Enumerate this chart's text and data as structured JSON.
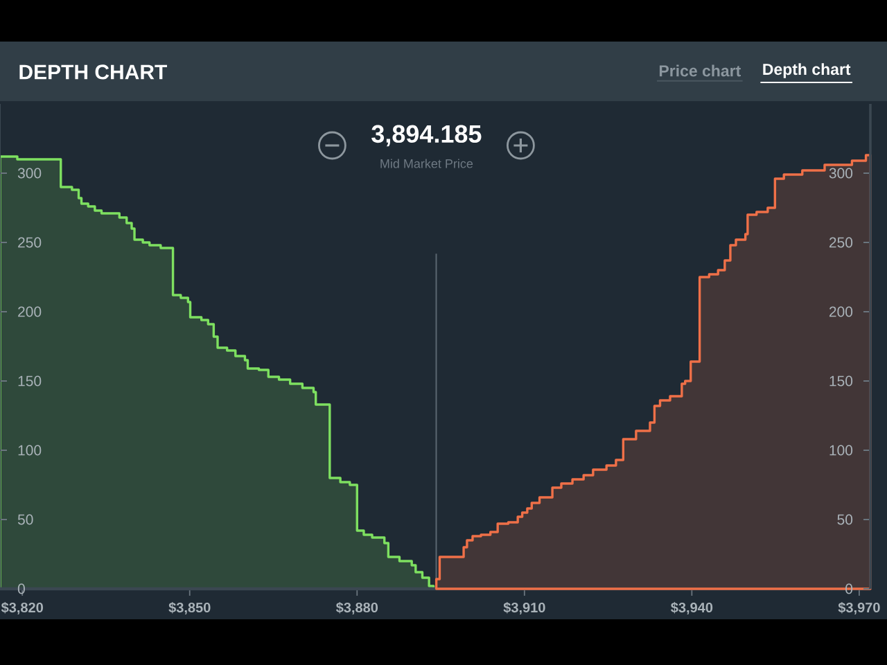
{
  "chart_data": {
    "type": "area",
    "title": "DEPTH CHART",
    "annotations": [
      "Price chart",
      "Depth chart",
      "3,894.185",
      "Mid Market Price"
    ],
    "xlim": [
      3816,
      3972
    ],
    "xticks": [
      {
        "value": 3820,
        "label": "$3,820"
      },
      {
        "value": 3850,
        "label": "$3,850"
      },
      {
        "value": 3880,
        "label": "$3,880"
      },
      {
        "value": 3910,
        "label": "$3,910"
      },
      {
        "value": 3940,
        "label": "$3,940"
      },
      {
        "value": 3970,
        "label": "$3,970"
      }
    ],
    "ylim": [
      0,
      350
    ],
    "yticks": [
      0,
      50,
      100,
      150,
      200,
      250,
      300
    ],
    "y2lim": [
      0,
      350
    ],
    "y2ticks": [
      0,
      50,
      100,
      150,
      200,
      250,
      300
    ],
    "ref_lines": [
      {
        "axis": "x",
        "value": 3894.185,
        "color": "#5b6670"
      }
    ],
    "series": [
      {
        "color": "#7ee060",
        "x": [
          3816,
          3819.1,
          3819.1,
          3826.9,
          3826.9,
          3828.9,
          3828.9,
          3830.1,
          3830.1,
          3830.6,
          3830.6,
          3831.8,
          3831.8,
          3833.0,
          3833.0,
          3834.2,
          3834.2,
          3837.4,
          3837.4,
          3838.7,
          3838.7,
          3839.6,
          3839.6,
          3840.1,
          3840.1,
          3841.6,
          3841.6,
          3842.8,
          3842.8,
          3844.8,
          3844.8,
          3847.0,
          3847.0,
          3848.4,
          3848.4,
          3849.7,
          3849.7,
          3850.1,
          3850.1,
          3852.1,
          3852.1,
          3853.3,
          3853.3,
          3854.3,
          3854.3,
          3855.0,
          3855.0,
          3856.7,
          3856.7,
          3858.2,
          3858.2,
          3859.9,
          3859.9,
          3860.4,
          3860.4,
          3862.4,
          3862.4,
          3864.1,
          3864.1,
          3866.0,
          3866.0,
          3868.0,
          3868.0,
          3870.2,
          3870.2,
          3872.2,
          3872.2,
          3872.6,
          3872.6,
          3875.1,
          3875.1,
          3877.0,
          3877.0,
          3878.7,
          3878.7,
          3880.0,
          3880.0,
          3881.2,
          3881.2,
          3882.7,
          3882.7,
          3884.9,
          3884.9,
          3885.6,
          3885.6,
          3887.6,
          3887.6,
          3889.8,
          3889.8,
          3890.5,
          3890.5,
          3891.7,
          3891.7,
          3892.9,
          3892.9,
          3893.7,
          3893.7,
          3894.2
        ],
        "values": [
          312,
          312,
          310,
          310,
          290,
          290,
          288,
          288,
          282,
          282,
          278,
          278,
          276,
          276,
          273,
          273,
          271,
          271,
          268,
          268,
          264,
          264,
          260,
          260,
          252,
          252,
          250,
          250,
          248,
          248,
          246,
          246,
          212,
          212,
          210,
          210,
          207,
          207,
          196,
          196,
          194,
          194,
          191,
          191,
          182,
          182,
          174,
          174,
          172,
          172,
          168,
          168,
          165,
          165,
          159,
          159,
          158,
          158,
          153,
          153,
          151,
          151,
          148,
          148,
          145,
          145,
          142,
          142,
          133,
          133,
          80,
          80,
          77,
          77,
          75,
          75,
          42,
          42,
          39,
          39,
          37,
          37,
          33,
          33,
          23,
          23,
          20,
          20,
          17,
          17,
          12,
          12,
          8,
          8,
          2,
          2,
          0,
          0
        ]
      },
      {
        "color": "#ef7048",
        "axis": "y2",
        "x": [
          3894.2,
          3894.2,
          3894.8,
          3894.8,
          3899.1,
          3899.1,
          3899.7,
          3899.7,
          3900.7,
          3900.7,
          3902.2,
          3902.2,
          3903.9,
          3903.9,
          3905.2,
          3905.2,
          3907.1,
          3907.1,
          3908.8,
          3908.8,
          3909.6,
          3909.6,
          3910.5,
          3910.5,
          3911.3,
          3911.3,
          3912.7,
          3912.7,
          3915.0,
          3915.0,
          3916.6,
          3916.6,
          3918.6,
          3918.6,
          3920.6,
          3920.6,
          3922.3,
          3922.3,
          3924.7,
          3924.7,
          3926.4,
          3926.4,
          3927.7,
          3927.7,
          3930.0,
          3930.0,
          3932.5,
          3932.5,
          3933.3,
          3933.3,
          3934.3,
          3934.3,
          3936.1,
          3936.1,
          3938.2,
          3938.2,
          3938.8,
          3938.8,
          3939.8,
          3939.8,
          3941.4,
          3941.4,
          3943.1,
          3943.1,
          3944.7,
          3944.7,
          3945.9,
          3945.9,
          3946.9,
          3946.9,
          3947.9,
          3947.9,
          3949.6,
          3949.6,
          3950.0,
          3950.0,
          3951.6,
          3951.6,
          3953.6,
          3953.6,
          3954.9,
          3954.9,
          3956.5,
          3956.5,
          3959.8,
          3959.8,
          3963.8,
          3963.8,
          3968.7,
          3968.7,
          3971.2,
          3971.2,
          3972
        ],
        "values": [
          0,
          7,
          7,
          23,
          23,
          30,
          30,
          35,
          35,
          38,
          38,
          39,
          39,
          41,
          41,
          47,
          47,
          48,
          48,
          52,
          52,
          55,
          55,
          58,
          58,
          62,
          62,
          66,
          66,
          73,
          73,
          76,
          76,
          79,
          79,
          82,
          82,
          86,
          86,
          89,
          89,
          93,
          93,
          108,
          108,
          114,
          114,
          120,
          120,
          132,
          132,
          136,
          136,
          139,
          139,
          148,
          148,
          150,
          150,
          164,
          164,
          225,
          225,
          227,
          227,
          230,
          230,
          237,
          237,
          248,
          248,
          252,
          252,
          256,
          256,
          270,
          270,
          272,
          272,
          275,
          275,
          296,
          296,
          299,
          299,
          302,
          302,
          306,
          306,
          309,
          309,
          313,
          313
        ]
      }
    ]
  }
}
